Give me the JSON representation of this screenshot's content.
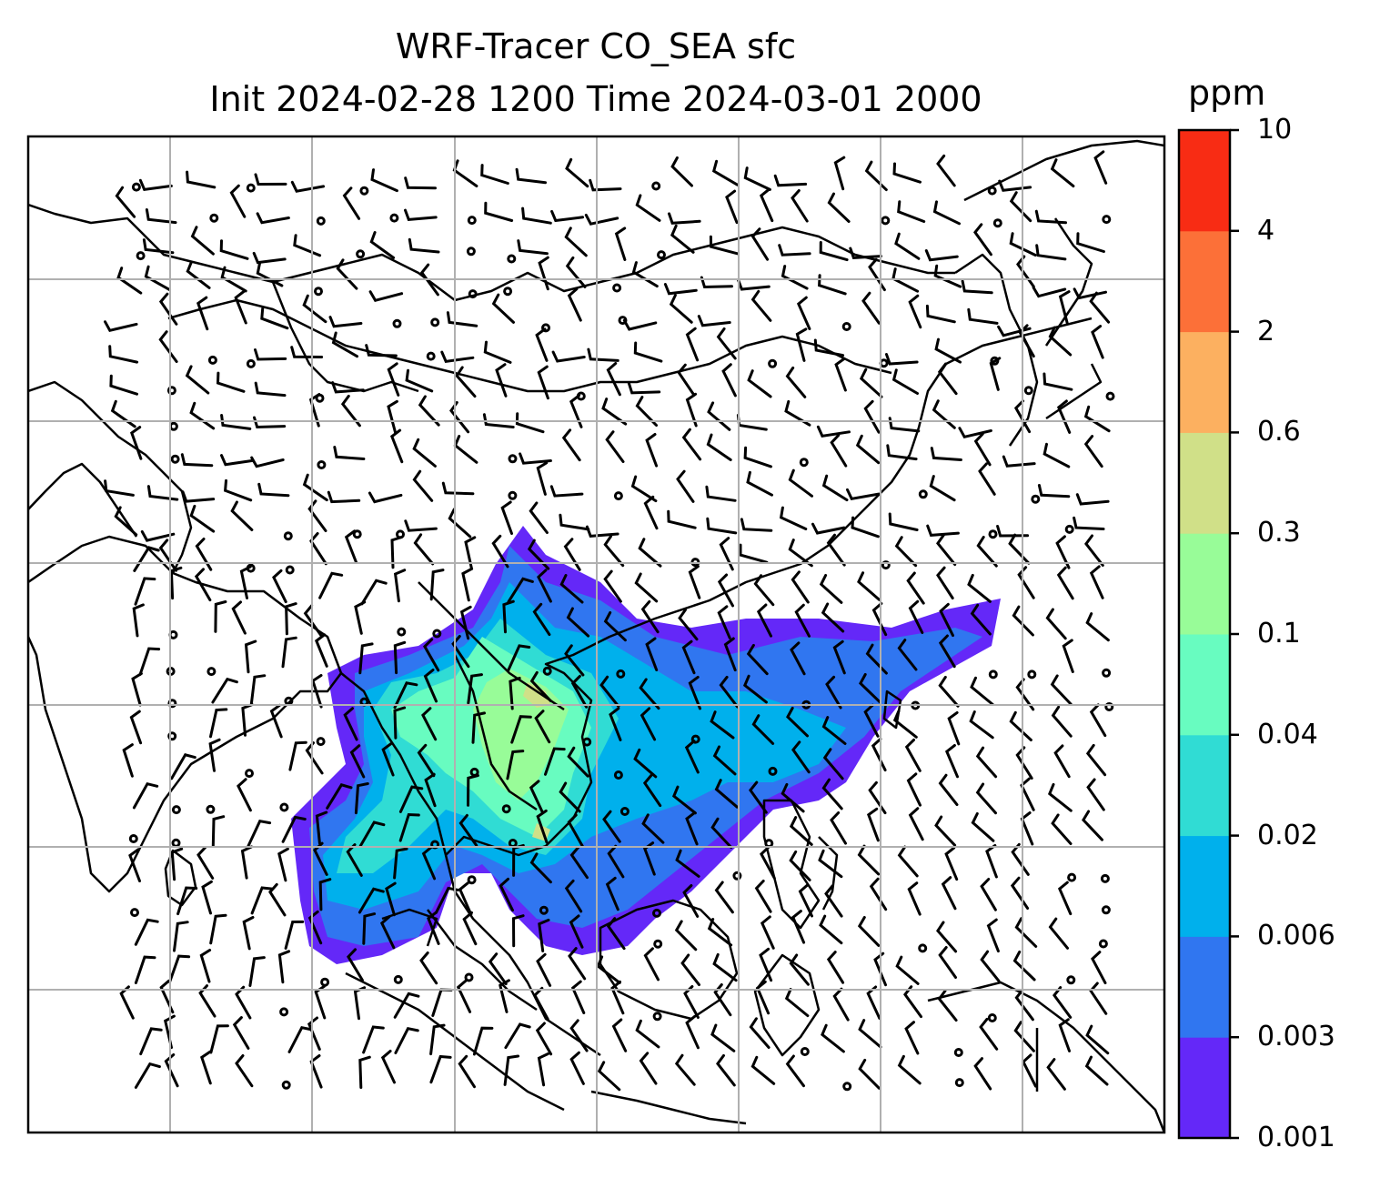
{
  "title": {
    "line1": "WRF-Tracer CO_SEA sfc",
    "line2": "Init 2024-02-28 1200 Time 2024-03-01 2000"
  },
  "colorbar": {
    "unit": "ppm",
    "levels": [
      "0.001",
      "0.003",
      "0.006",
      "0.02",
      "0.04",
      "0.1",
      "0.3",
      "0.6",
      "2",
      "4",
      "10"
    ],
    "colors": [
      "#6428f8",
      "#3076f0",
      "#00b0ec",
      "#30dcd4",
      "#68fcc0",
      "#98fc98",
      "#d0e088",
      "#fcb060",
      "#fc7038",
      "#f82c14"
    ]
  },
  "map": {
    "field": "CO_SEA tracer concentration (surface)",
    "overlays": [
      "coastlines",
      "country-borders",
      "wind-barbs",
      "graticule"
    ],
    "gridlines": true
  }
}
